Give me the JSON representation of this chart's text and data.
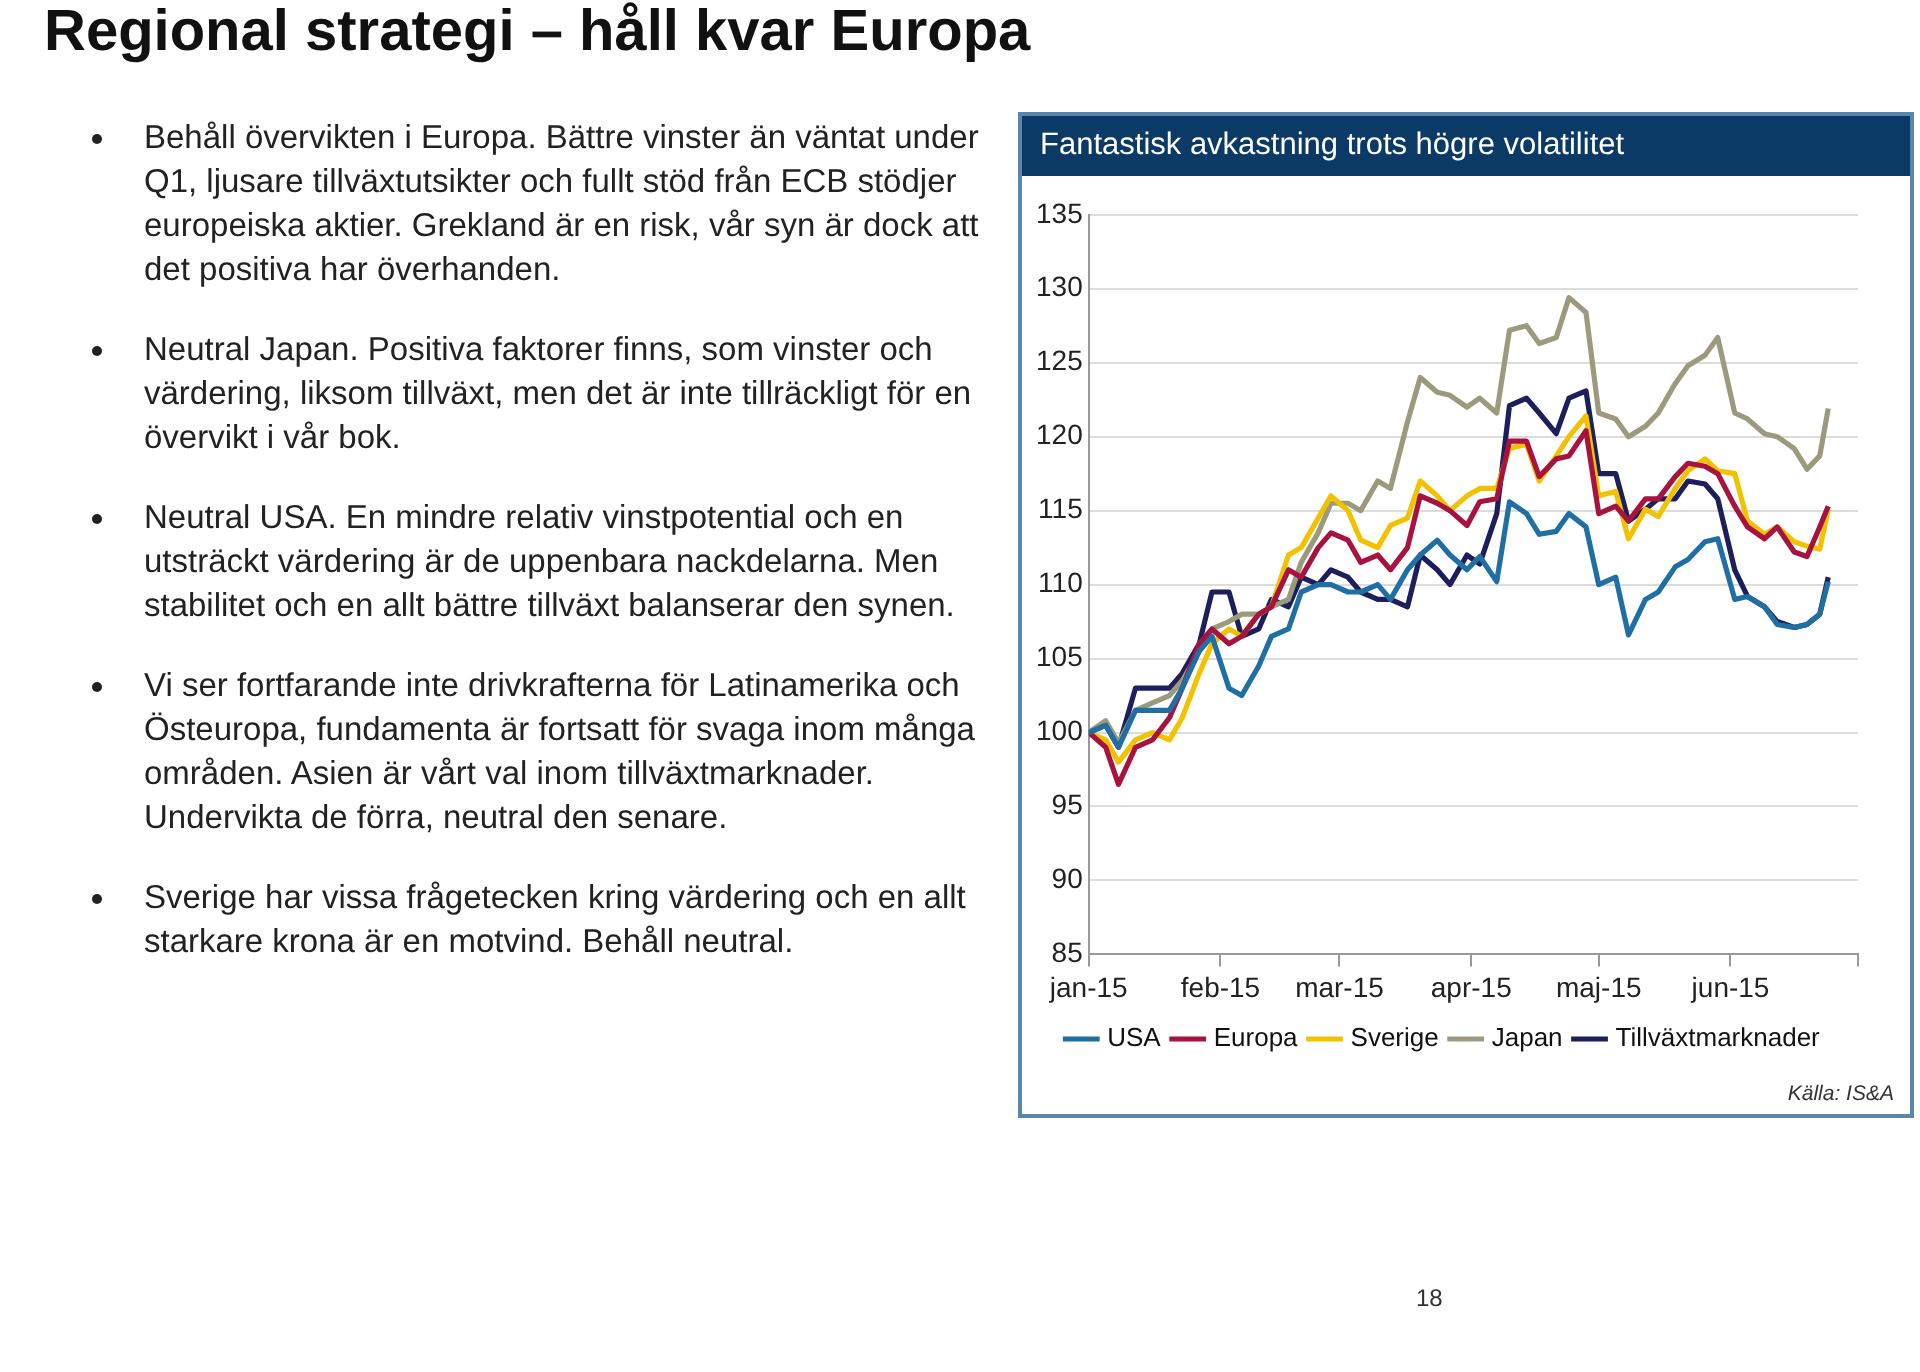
{
  "chart_data": {
    "type": "line",
    "title": "Regional strategi – håll kvar Europa",
    "subtitle": "Fantastisk avkastning trots högre volatilitet",
    "x": [
      "2015-01-01",
      "2015-01-05",
      "2015-01-08",
      "2015-01-12",
      "2015-01-16",
      "2015-01-20",
      "2015-01-23",
      "2015-01-27",
      "2015-01-30",
      "2015-02-03",
      "2015-02-06",
      "2015-02-10",
      "2015-02-13",
      "2015-02-17",
      "2015-02-20",
      "2015-02-24",
      "2015-02-27",
      "2015-03-03",
      "2015-03-06",
      "2015-03-10",
      "2015-03-13",
      "2015-03-17",
      "2015-03-20",
      "2015-03-24",
      "2015-03-27",
      "2015-03-31",
      "2015-04-03",
      "2015-04-07",
      "2015-04-10",
      "2015-04-14",
      "2015-04-17",
      "2015-04-21",
      "2015-04-24",
      "2015-04-28",
      "2015-05-01",
      "2015-05-05",
      "2015-05-08",
      "2015-05-12",
      "2015-05-15",
      "2015-05-19",
      "2015-05-22",
      "2015-05-26",
      "2015-05-29",
      "2015-06-02",
      "2015-06-05",
      "2015-06-09",
      "2015-06-12",
      "2015-06-16",
      "2015-06-19",
      "2015-06-22",
      "2015-06-24"
    ],
    "series": [
      {
        "name": "USA",
        "color": "#1f6fa5",
        "values": [
          100,
          100.5,
          99,
          101.5,
          101.5,
          101.5,
          103,
          105.5,
          106.5,
          103,
          102.5,
          104.5,
          106.5,
          107,
          109.5,
          110,
          110,
          109.5,
          109.5,
          110,
          109,
          111,
          112,
          113,
          112,
          111,
          111.9,
          110.2,
          115.6,
          114.8,
          113.4,
          113.6,
          114.8,
          113.9,
          110,
          110.5,
          106.6,
          109,
          109.5,
          111.2,
          111.7,
          112.9,
          113.1,
          109,
          109.2,
          108.5,
          107.3,
          107.1,
          107.3,
          108,
          110.2
        ]
      },
      {
        "name": "Europa",
        "color": "#a8123e",
        "values": [
          100,
          99,
          96.5,
          99,
          99.5,
          101,
          103,
          106,
          107,
          106,
          106.5,
          108,
          108.5,
          111,
          110.5,
          112.5,
          113.5,
          113,
          111.5,
          112,
          111,
          112.5,
          116,
          115.5,
          115,
          114,
          115.6,
          115.8,
          119.7,
          119.7,
          117.3,
          118.5,
          118.7,
          120.4,
          114.8,
          115.3,
          114.3,
          115.8,
          115.8,
          117.3,
          118.2,
          118,
          117.5,
          115.3,
          113.9,
          113.1,
          113.9,
          112.2,
          111.9,
          113.9,
          115.3
        ]
      },
      {
        "name": "Sverige",
        "color": "#f2c200",
        "values": [
          100,
          99.5,
          98,
          99.5,
          100,
          99.5,
          101,
          104,
          106,
          107,
          106.5,
          108,
          108.5,
          112,
          112.5,
          114.5,
          116,
          115,
          113,
          112.5,
          114,
          114.5,
          117,
          116,
          115,
          116,
          116.5,
          116.5,
          119.2,
          119.5,
          117,
          118.7,
          120,
          121.4,
          116,
          116.3,
          113.1,
          115.1,
          114.6,
          116.5,
          117.7,
          118.5,
          117.7,
          117.5,
          114.3,
          113.4,
          113.9,
          112.9,
          112.6,
          112.4,
          115.1
        ]
      },
      {
        "name": "Japan",
        "color": "#9c9a7c",
        "values": [
          100,
          100.8,
          99.3,
          101.5,
          102,
          102.5,
          103.5,
          105.5,
          107,
          107.5,
          108,
          108,
          108.5,
          109,
          111.5,
          113.5,
          115.5,
          115.5,
          115,
          117,
          116.5,
          121,
          124,
          123,
          122.8,
          122,
          122.6,
          121.6,
          127.2,
          127.5,
          126.3,
          126.7,
          129.4,
          128.4,
          121.6,
          121.2,
          120,
          120.7,
          121.6,
          123.6,
          124.8,
          125.5,
          126.7,
          121.6,
          121.2,
          120.2,
          120,
          119.2,
          117.8,
          118.7,
          121.9
        ]
      },
      {
        "name": "Tillväxtmarknader",
        "color": "#1c1f5c",
        "values": [
          100,
          100.5,
          99,
          103,
          103,
          103,
          104,
          106,
          109.5,
          109.5,
          106.5,
          107,
          109,
          108.5,
          110.5,
          110,
          111,
          110.5,
          109.5,
          109,
          109,
          108.5,
          112,
          111,
          110,
          112,
          111.4,
          114.8,
          122.1,
          122.6,
          121.6,
          120.2,
          122.6,
          123.1,
          117.5,
          117.5,
          114.3,
          115.1,
          115.8,
          115.8,
          117,
          116.8,
          115.8,
          111,
          109.2,
          108.5,
          107.5,
          107.1,
          107.3,
          108,
          110.5
        ]
      }
    ],
    "xlim": [
      "2015-01-01",
      "2015-07-01"
    ],
    "xticks": [
      {
        "value": "2015-01-01",
        "label": "jan-15"
      },
      {
        "value": "2015-02-01",
        "label": "feb-15"
      },
      {
        "value": "2015-03-01",
        "label": "mar-15"
      },
      {
        "value": "2015-04-01",
        "label": "apr-15"
      },
      {
        "value": "2015-05-01",
        "label": "maj-15"
      },
      {
        "value": "2015-06-01",
        "label": "jun-15"
      },
      {
        "value": "2015-07-01",
        "label": null
      }
    ],
    "ylim": [
      85,
      135
    ],
    "yticks": [
      85,
      90,
      95,
      100,
      105,
      110,
      115,
      120,
      125,
      130,
      135
    ],
    "grid": "y",
    "legend": "bottom",
    "marker": "none",
    "line_style": "solid",
    "annotations": [
      "Behåll övervikten i Europa. Bättre vinster än väntat under Q1, ljusare tillväxtutsikter och fullt stöd från ECB stödjer europeiska aktier. Grekland är en risk, vår syn är dock att det positiva har överhanden.",
      "Neutral Japan. Positiva faktorer finns, som vinster och värdering, liksom tillväxt, men det är inte tillräckligt för en övervikt i vår bok.",
      "Neutral USA. En mindre relativ vinstpotential och en utsträckt värdering är de uppenbara nackdelarna. Men stabilitet och en allt bättre tillväxt balanserar den synen.",
      "Vi ser fortfarande inte drivkrafterna för Latinamerika och Östeuropa, fundamenta är fortsatt för svaga inom många områden. Asien är vårt val inom tillväxtmarknader. Undervikta de förra, neutral den senare.",
      "Sverige har vissa frågetecken kring värdering och en allt starkare krona är en motvind. Behåll neutral.",
      "Källa: IS&A",
      "18"
    ]
  }
}
